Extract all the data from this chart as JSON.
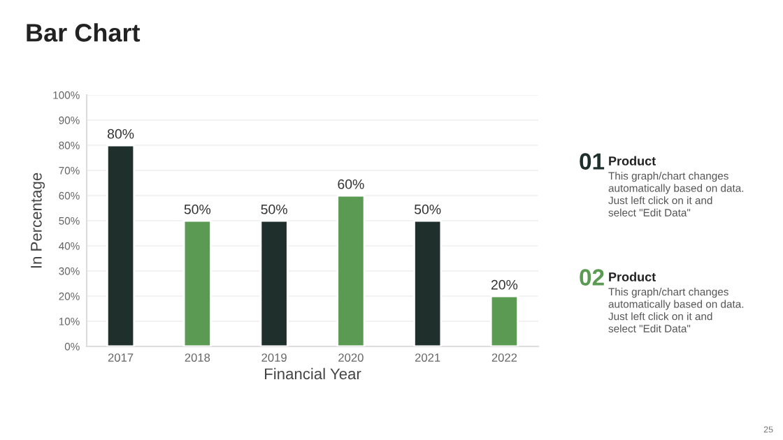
{
  "chart_data": {
    "type": "bar",
    "title": "Bar Chart",
    "xlabel": "Financial Year",
    "ylabel": "In Percentage",
    "categories": [
      "2017",
      "2018",
      "2019",
      "2020",
      "2021",
      "2022"
    ],
    "values": [
      80,
      50,
      50,
      60,
      50,
      20
    ],
    "colors": [
      "#1f302c",
      "#5b9a52",
      "#1f302c",
      "#5b9a52",
      "#1f302c",
      "#5b9a52"
    ],
    "value_labels": [
      "80%",
      "50%",
      "50%",
      "60%",
      "50%",
      "20%"
    ],
    "ylim": [
      0,
      100
    ],
    "yticks": [
      {
        "value": 0,
        "label": "0%"
      },
      {
        "value": 10,
        "label": "10%"
      },
      {
        "value": 20,
        "label": "20%"
      },
      {
        "value": 30,
        "label": "30%"
      },
      {
        "value": 40,
        "label": "40%"
      },
      {
        "value": 50,
        "label": "50%"
      },
      {
        "value": 60,
        "label": "60%"
      },
      {
        "value": 70,
        "label": "70%"
      },
      {
        "value": 80,
        "label": "80%"
      },
      {
        "value": 90,
        "label": "90%"
      },
      {
        "value": 100,
        "label": "100%"
      }
    ],
    "grid": "y",
    "annotations": [
      "01",
      "Product",
      "This graph/chart changes\nautomatically based on data.\nJust left click on it and\nselect \"Edit Data\"",
      "02",
      "Product",
      "This graph/chart changes\nautomatically based on data.\nJust left click on it and\nselect \"Edit Data\"",
      "25"
    ]
  }
}
